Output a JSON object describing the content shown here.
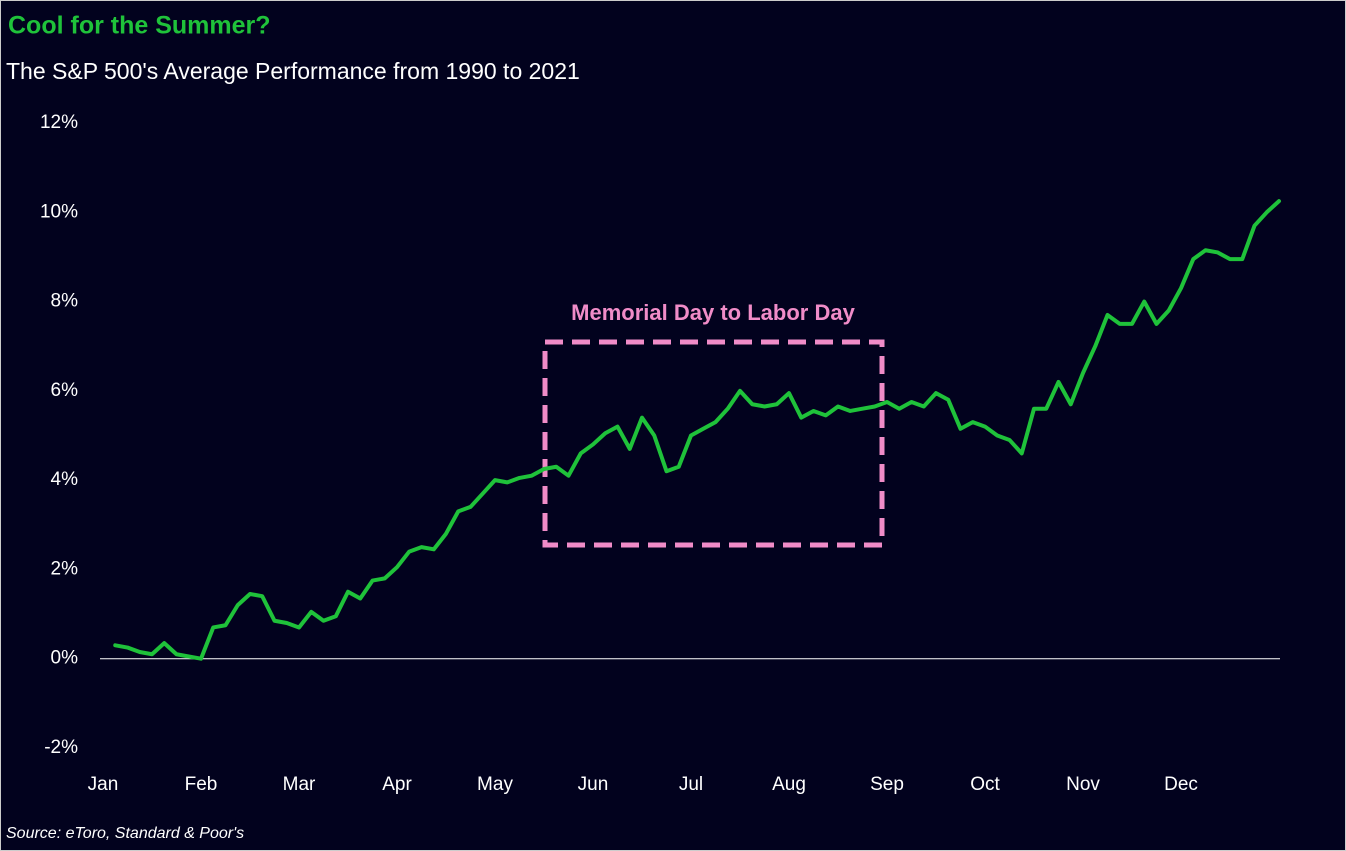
{
  "chart_data": {
    "type": "line",
    "title": "Cool for the Summer?",
    "subtitle": "The S&P 500's Average Performance from 1990 to 2021",
    "source": "Source: eToro, Standard & Poor's",
    "annotation": "Memorial Day to Labor Day",
    "categories": [
      "Jan",
      null,
      null,
      null,
      null,
      null,
      null,
      null,
      "Feb",
      null,
      null,
      null,
      null,
      null,
      null,
      null,
      "Mar",
      null,
      null,
      null,
      null,
      null,
      null,
      null,
      "Apr",
      null,
      null,
      null,
      null,
      null,
      null,
      null,
      "May",
      null,
      null,
      null,
      null,
      null,
      null,
      null,
      "Jun",
      null,
      null,
      null,
      null,
      null,
      null,
      null,
      "Jul",
      null,
      null,
      null,
      null,
      null,
      null,
      null,
      "Aug",
      null,
      null,
      null,
      null,
      null,
      null,
      null,
      "Sep",
      null,
      null,
      null,
      null,
      null,
      null,
      null,
      "Oct",
      null,
      null,
      null,
      null,
      null,
      null,
      null,
      "Nov",
      null,
      null,
      null,
      null,
      null,
      null,
      null,
      "Dec",
      null,
      null,
      null,
      null,
      null,
      null,
      null,
      null
    ],
    "series": [
      {
        "color": "#1fc23a",
        "values": [
          null,
          0.3,
          0.25,
          0.15,
          0.1,
          0.35,
          0.1,
          0.05,
          0.0,
          0.7,
          0.75,
          1.2,
          1.45,
          1.4,
          0.85,
          0.8,
          0.7,
          1.05,
          0.85,
          0.95,
          1.5,
          1.35,
          1.75,
          1.8,
          2.05,
          2.4,
          2.5,
          2.45,
          2.8,
          3.3,
          3.4,
          3.7,
          4.0,
          3.95,
          4.05,
          4.1,
          4.25,
          4.3,
          4.1,
          4.6,
          4.8,
          5.05,
          5.2,
          4.7,
          5.4,
          5.0,
          4.2,
          4.3,
          5.0,
          5.15,
          5.3,
          5.6,
          6.0,
          5.7,
          5.65,
          5.7,
          5.95,
          5.4,
          5.55,
          5.45,
          5.65,
          5.55,
          5.6,
          5.65,
          5.75,
          5.6,
          5.75,
          5.65,
          5.95,
          5.8,
          5.15,
          5.3,
          5.2,
          5.0,
          4.9,
          4.6,
          5.6,
          5.6,
          6.2,
          5.7,
          6.4,
          7.0,
          7.7,
          7.5,
          7.5,
          8.0,
          7.5,
          7.8,
          8.3,
          8.95,
          9.15,
          9.1,
          8.95,
          8.95,
          9.7,
          10.0,
          10.25
        ]
      }
    ],
    "ylim": [
      -2,
      12
    ],
    "yticks": [
      {
        "value": -2,
        "label": "-2%"
      },
      {
        "value": 0,
        "label": "0%"
      },
      {
        "value": 2,
        "label": "2%"
      },
      {
        "value": 4,
        "label": "4%"
      },
      {
        "value": 6,
        "label": "6%"
      },
      {
        "value": 8,
        "label": "8%"
      },
      {
        "value": 10,
        "label": "10%"
      },
      {
        "value": 12,
        "label": "12%"
      }
    ]
  }
}
